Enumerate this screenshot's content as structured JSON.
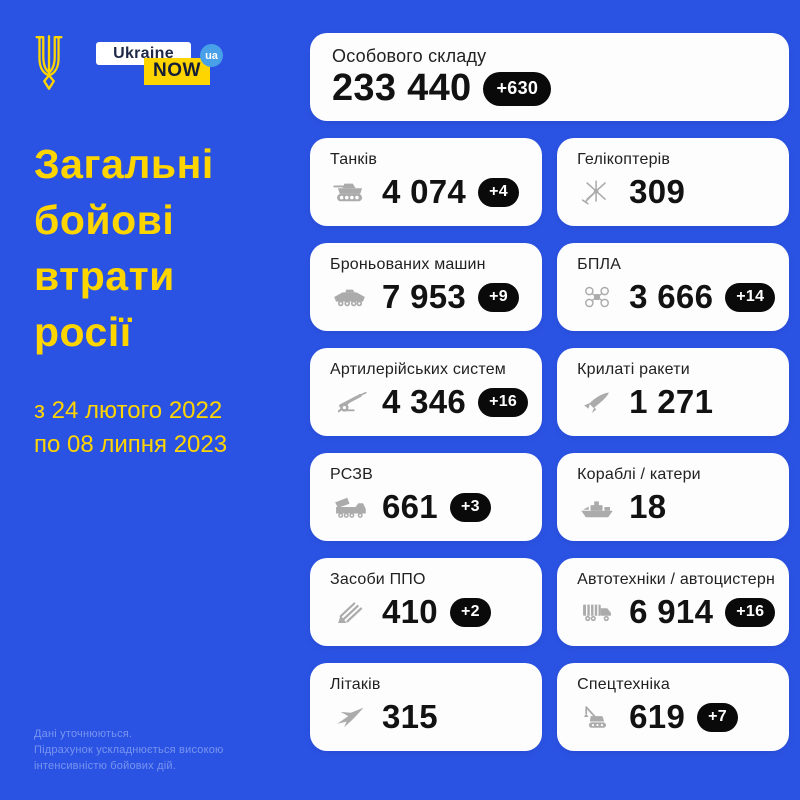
{
  "theme": {
    "background": "#2B53E3",
    "accent_yellow": "#FFD500",
    "card_bg": "#FDFDFD",
    "badge_bg": "#0A0A0A",
    "icon_gray": "#ABABAB",
    "ua_circle_blue": "#47A0E8"
  },
  "logo": {
    "ukraine": "Ukraine",
    "now": "NOW",
    "ua": "ua"
  },
  "title": {
    "lines": [
      "Загальні",
      "бойові",
      "втрати",
      "росії"
    ]
  },
  "period": {
    "line1": "з 24 лютого 2022",
    "line2": "по 08 липня 2023"
  },
  "footnote": {
    "lines": [
      "Дані уточнюються.",
      "Підрахунок ускладнюється високою",
      "інтенсивністю бойових дій."
    ]
  },
  "cards": [
    {
      "label": "Особового складу",
      "value": "233 440",
      "delta": "+630",
      "icon": "none",
      "wide": true
    },
    {
      "label": "Танків",
      "value": "4 074",
      "delta": "+4",
      "icon": "tank"
    },
    {
      "label": "Гелікоптерів",
      "value": "309",
      "delta": "",
      "icon": "helicopter"
    },
    {
      "label": "Броньованих машин",
      "value": "7 953",
      "delta": "+9",
      "icon": "apc"
    },
    {
      "label": "БПЛА",
      "value": "3 666",
      "delta": "+14",
      "icon": "drone"
    },
    {
      "label": "Артилерійських систем",
      "value": "4 346",
      "delta": "+16",
      "icon": "artillery"
    },
    {
      "label": "Крилаті ракети",
      "value": "1 271",
      "delta": "",
      "icon": "missile"
    },
    {
      "label": "РСЗВ",
      "value": "661",
      "delta": "+3",
      "icon": "mlrs"
    },
    {
      "label": "Кораблі / катери",
      "value": "18",
      "delta": "",
      "icon": "ship"
    },
    {
      "label": "Засоби ППО",
      "value": "410",
      "delta": "+2",
      "icon": "air-defense"
    },
    {
      "label": "Автотехніки / автоцистерн",
      "value": "6 914",
      "delta": "+16",
      "icon": "truck"
    },
    {
      "label": "Літаків",
      "value": "315",
      "delta": "",
      "icon": "jet"
    },
    {
      "label": "Спецтехніка",
      "value": "619",
      "delta": "+7",
      "icon": "crane"
    }
  ],
  "chart_data": {
    "type": "table",
    "title": "Загальні бойові втрати росії",
    "subtitle": "з 24 лютого 2022 по 08 липня 2023",
    "categories": [
      "Особового складу",
      "Танків",
      "Гелікоптерів",
      "Броньованих машин",
      "БПЛА",
      "Артилерійських систем",
      "Крилаті ракети",
      "РСЗВ",
      "Кораблі / катери",
      "Засоби ППО",
      "Автотехніки / автоцистерн",
      "Літаків",
      "Спецтехніка"
    ],
    "values": [
      233440,
      4074,
      309,
      7953,
      3666,
      4346,
      1271,
      661,
      18,
      410,
      6914,
      315,
      619
    ],
    "daily_increase": [
      630,
      4,
      null,
      9,
      14,
      16,
      null,
      3,
      null,
      2,
      16,
      null,
      7
    ]
  }
}
